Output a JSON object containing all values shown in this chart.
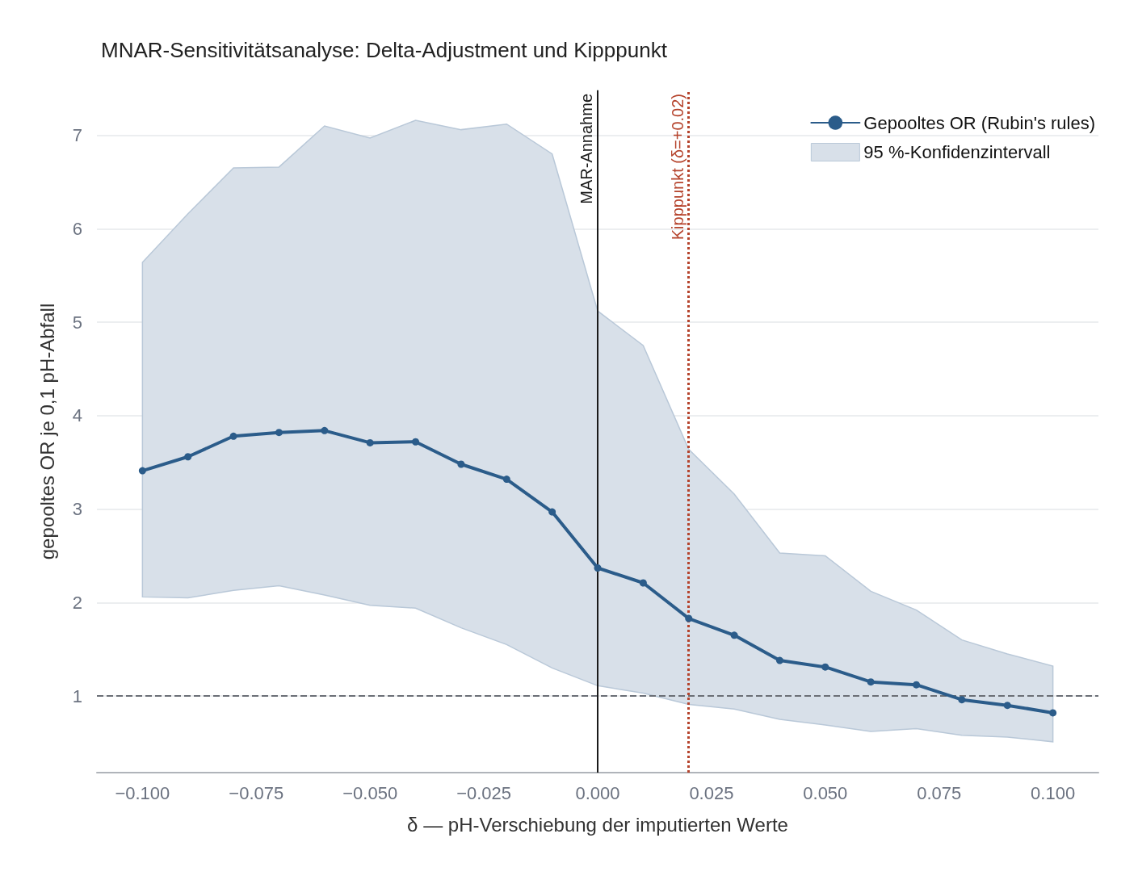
{
  "chart_data": {
    "type": "line",
    "title": "MNAR-Sensitivitätsanalyse: Delta-Adjustment und Kipppunkt",
    "xlabel": "δ — pH-Verschiebung der imputierten Werte",
    "ylabel": "gepooltes OR je 0,1 pH-Abfall",
    "x": [
      -0.1,
      -0.09,
      -0.08,
      -0.07,
      -0.06,
      -0.05,
      -0.04,
      -0.03,
      -0.02,
      -0.01,
      0,
      0.01,
      0.02,
      0.03,
      0.04,
      0.05,
      0.06,
      0.07,
      0.08,
      0.09,
      0.1
    ],
    "series": [
      {
        "name": "Gepooltes OR (Rubin's rules)",
        "color": "#2b5c8a",
        "marker": "circle",
        "values": [
          3.41,
          3.56,
          3.78,
          3.82,
          3.84,
          3.71,
          3.72,
          3.48,
          3.32,
          2.97,
          2.37,
          2.21,
          1.83,
          1.65,
          1.38,
          1.31,
          1.15,
          1.12,
          0.96,
          0.9,
          0.82
        ],
        "upper": [
          5.64,
          6.16,
          6.65,
          6.66,
          7.1,
          6.97,
          7.16,
          7.06,
          7.12,
          6.8,
          5.12,
          4.75,
          3.64,
          3.16,
          2.53,
          2.5,
          2.12,
          1.92,
          1.6,
          1.45,
          1.32
        ],
        "lower": [
          2.06,
          2.05,
          2.13,
          2.18,
          2.08,
          1.97,
          1.94,
          1.73,
          1.55,
          1.3,
          1.11,
          1.03,
          0.91,
          0.86,
          0.75,
          0.69,
          0.62,
          0.65,
          0.58,
          0.56,
          0.51
        ]
      },
      {
        "type": "area",
        "name": "95 %-Konfidenzintervall",
        "color": "#d8e0e9",
        "values": [
          null,
          null,
          null,
          null,
          null,
          null,
          null,
          null,
          null,
          null,
          null,
          null,
          null,
          null,
          null,
          null,
          null,
          null,
          null,
          null,
          null
        ]
      }
    ],
    "xlim": [
      -0.11,
      0.11
    ],
    "xticks": [
      {
        "value": -0.1,
        "label": "−0.100"
      },
      {
        "value": -0.075,
        "label": "−0.075"
      },
      {
        "value": -0.05,
        "label": "−0.050"
      },
      {
        "value": -0.025,
        "label": "−0.025"
      },
      {
        "value": 0,
        "label": "0.000"
      },
      {
        "value": 0.025,
        "label": "0.025"
      },
      {
        "value": 0.05,
        "label": "0.050"
      },
      {
        "value": 0.075,
        "label": "0.075"
      },
      {
        "value": 0.1,
        "label": "0.100"
      }
    ],
    "ylim": [
      0.18,
      7.48
    ],
    "yticks": [
      1,
      2,
      3,
      4,
      5,
      6,
      7
    ],
    "ref_lines": [
      {
        "axis": "y",
        "value": 1,
        "label": null,
        "color": "#6b6f76",
        "line_style": "dashed"
      },
      {
        "axis": "x",
        "value": 0,
        "label": "MAR-Annahme",
        "color": "#1a1a1a",
        "line_style": "solid"
      },
      {
        "axis": "x",
        "value": 0.02,
        "label": "Kipppunkt (δ=+0.02)",
        "color": "#b5432c",
        "line_style": "dotted"
      }
    ],
    "grid": "y",
    "legend": "top right",
    "line_style": "solid"
  }
}
